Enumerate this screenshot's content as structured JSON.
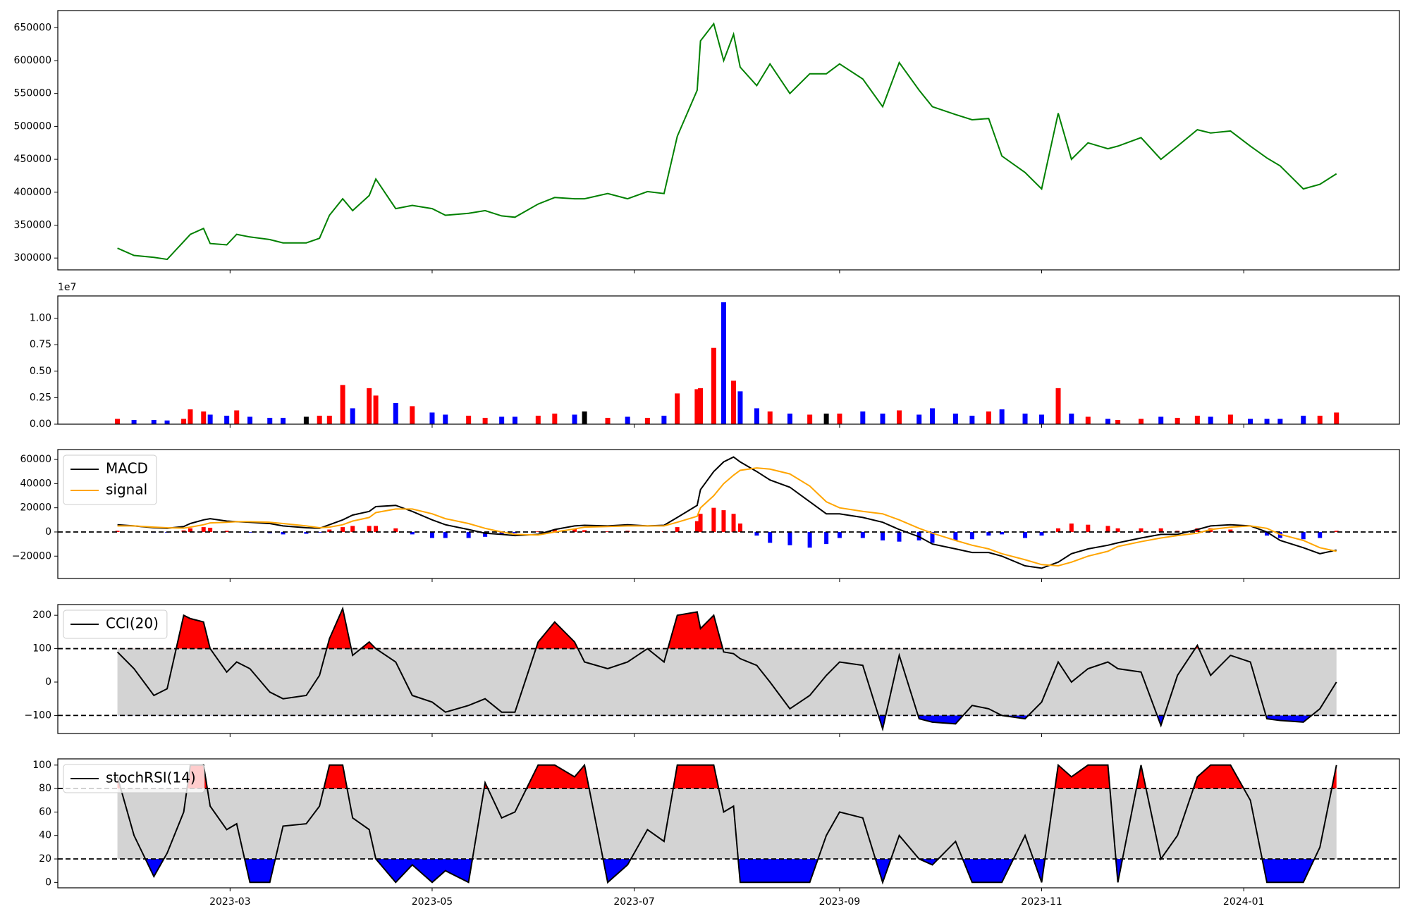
{
  "chart_data": [
    {
      "type": "line",
      "x": [
        "2023-01-26",
        "2023-01-31",
        "2023-02-06",
        "2023-02-10",
        "2023-02-15",
        "2023-02-17",
        "2023-02-21",
        "2023-02-23",
        "2023-02-28",
        "2023-03-03",
        "2023-03-07",
        "2023-03-13",
        "2023-03-17",
        "2023-03-24",
        "2023-03-28",
        "2023-03-31",
        "2023-04-04",
        "2023-04-07",
        "2023-04-12",
        "2023-04-14",
        "2023-04-20",
        "2023-04-25",
        "2023-05-01",
        "2023-05-05",
        "2023-05-12",
        "2023-05-17",
        "2023-05-22",
        "2023-05-26",
        "2023-06-02",
        "2023-06-07",
        "2023-06-13",
        "2023-06-16",
        "2023-06-23",
        "2023-06-29",
        "2023-07-05",
        "2023-07-10",
        "2023-07-14",
        "2023-07-20",
        "2023-07-21",
        "2023-07-25",
        "2023-07-28",
        "2023-07-31",
        "2023-08-02",
        "2023-08-07",
        "2023-08-11",
        "2023-08-17",
        "2023-08-23",
        "2023-08-28",
        "2023-09-01",
        "2023-09-08",
        "2023-09-14",
        "2023-09-19",
        "2023-09-25",
        "2023-09-29",
        "2023-10-06",
        "2023-10-11",
        "2023-10-16",
        "2023-10-20",
        "2023-10-27",
        "2023-11-01",
        "2023-11-06",
        "2023-11-10",
        "2023-11-15",
        "2023-11-21",
        "2023-11-24",
        "2023-12-01",
        "2023-12-07",
        "2023-12-12",
        "2023-12-18",
        "2023-12-22",
        "2023-12-28",
        "2024-01-03",
        "2024-01-08",
        "2024-01-12",
        "2024-01-19",
        "2024-01-24",
        "2024-01-29"
      ],
      "values": [
        315000,
        304000,
        301000,
        298000,
        325000,
        336000,
        345000,
        322000,
        320000,
        336000,
        332000,
        328000,
        323000,
        323000,
        330000,
        365000,
        390000,
        372000,
        395000,
        420000,
        375000,
        380000,
        375000,
        365000,
        368000,
        372000,
        364000,
        362000,
        382000,
        392000,
        390000,
        390000,
        398000,
        390000,
        401000,
        398000,
        485000,
        555000,
        630000,
        656000,
        600000,
        640000,
        590000,
        562000,
        595000,
        550000,
        580000,
        580000,
        595000,
        572000,
        530000,
        597000,
        555000,
        530000,
        518000,
        510000,
        512000,
        455000,
        430000,
        405000,
        520000,
        450000,
        475000,
        466000,
        470000,
        483000,
        450000,
        470000,
        495000,
        490000,
        493000,
        470000,
        452000,
        440000,
        405000,
        412000,
        428000
      ],
      "color": "green",
      "ylim": [
        282000,
        676000
      ],
      "yticks": [
        300000,
        350000,
        400000,
        450000,
        500000,
        550000,
        600000,
        650000
      ]
    },
    {
      "type": "bar",
      "values": [
        500000,
        400000,
        400000,
        350000,
        500000,
        1400000,
        1200000,
        900000,
        800000,
        1300000,
        700000,
        600000,
        600000,
        700000,
        800000,
        800000,
        3700000,
        1500000,
        3400000,
        2700000,
        2000000,
        1700000,
        1100000,
        900000,
        800000,
        600000,
        700000,
        700000,
        800000,
        1000000,
        900000,
        1200000,
        600000,
        700000,
        600000,
        800000,
        2900000,
        3300000,
        3400000,
        7200000,
        11500000,
        4100000,
        3100000,
        1500000,
        1200000,
        1000000,
        900000,
        1000000,
        1000000,
        1200000,
        1000000,
        1300000,
        900000,
        1500000,
        1000000,
        800000,
        1200000,
        1400000,
        1000000,
        900000,
        3400000,
        1000000,
        700000,
        500000,
        400000,
        500000,
        700000,
        600000,
        800000,
        700000,
        900000,
        500000,
        500000,
        500000,
        800000,
        800000,
        1100000
      ],
      "up_color": "red",
      "down_color": "blue",
      "flat_color": "black",
      "offset_label": "1e7",
      "ylim": [
        0,
        12100000
      ],
      "yticks": [
        {
          "value": 0,
          "label": "0.00"
        },
        {
          "value": 2500000,
          "label": "0.25"
        },
        {
          "value": 5000000,
          "label": "0.50"
        },
        {
          "value": 7500000,
          "label": "0.75"
        },
        {
          "value": 10000000,
          "label": "1.00"
        }
      ]
    },
    {
      "type": "macd",
      "series": [
        {
          "name": "MACD",
          "color": "black",
          "values": [
            6000,
            5000,
            3500,
            3000,
            4500,
            7000,
            10000,
            11000,
            9000,
            8500,
            8000,
            7000,
            5000,
            3500,
            3000,
            6000,
            10000,
            14000,
            17000,
            21000,
            22000,
            17000,
            10000,
            6000,
            2000,
            -1000,
            -2000,
            -3000,
            -2000,
            2000,
            5000,
            5500,
            5000,
            6000,
            5000,
            5500,
            12000,
            22000,
            35000,
            50000,
            58000,
            62000,
            58000,
            50000,
            43000,
            37000,
            25000,
            15000,
            15000,
            12000,
            8000,
            2000,
            -4000,
            -10000,
            -14000,
            -17000,
            -17000,
            -20000,
            -28000,
            -30000,
            -25000,
            -18000,
            -14000,
            -11000,
            -9000,
            -5000,
            -2000,
            -2000,
            2000,
            5000,
            6000,
            5000,
            0,
            -7000,
            -13000,
            -18000,
            -15000
          ]
        },
        {
          "name": "signal",
          "color": "orange",
          "values": [
            5000,
            5000,
            4000,
            3500,
            3200,
            4000,
            6000,
            7500,
            8000,
            8500,
            8500,
            8000,
            7000,
            5000,
            3500,
            4000,
            6000,
            9000,
            12000,
            16000,
            19000,
            19000,
            15000,
            11000,
            7000,
            3000,
            0,
            -2000,
            -2500,
            0,
            2500,
            4000,
            4500,
            5000,
            5000,
            5000,
            8000,
            13000,
            20000,
            30000,
            40000,
            47000,
            51000,
            53000,
            52000,
            48000,
            38000,
            25000,
            20000,
            17000,
            15000,
            10000,
            3000,
            -1000,
            -7000,
            -11000,
            -14000,
            -18000,
            -23000,
            -27000,
            -28000,
            -25000,
            -20000,
            -16000,
            -12000,
            -8000,
            -5000,
            -3000,
            -1000,
            2000,
            4000,
            5000,
            3000,
            -2000,
            -7000,
            -13000,
            -16000
          ]
        }
      ],
      "histogram": {
        "up_color": "red",
        "down_color": "blue",
        "values": [
          1000,
          0,
          -500,
          -500,
          1300,
          3000,
          4000,
          3500,
          1000,
          0,
          -500,
          -1000,
          -2000,
          -1500,
          -500,
          2000,
          4000,
          5000,
          5000,
          5000,
          3000,
          -2000,
          -5000,
          -5000,
          -5000,
          -4000,
          -2000,
          -1000,
          500,
          2000,
          2500,
          1500,
          500,
          1000,
          0,
          500,
          4000,
          9000,
          15000,
          20000,
          18000,
          15000,
          7000,
          -3000,
          -9000,
          -11000,
          -13000,
          -10000,
          -5000,
          -5000,
          -7000,
          -8000,
          -7000,
          -9000,
          -7000,
          -6000,
          -3000,
          -2000,
          -5000,
          -3000,
          3000,
          7000,
          6000,
          5000,
          3000,
          3000,
          3000,
          1000,
          3000,
          3000,
          2000,
          0,
          -3000,
          -5000,
          -6000,
          -5000,
          1000
        ]
      },
      "hlines": [
        0
      ],
      "legend": "upper left",
      "ylim": [
        -38500,
        68200
      ],
      "yticks": [
        {
          "value": -20000,
          "label": "−20000"
        },
        0,
        20000,
        40000,
        60000
      ]
    },
    {
      "type": "band",
      "series": [
        {
          "name": "CCI(20)",
          "color": "black",
          "values": [
            90,
            40,
            -40,
            -20,
            200,
            190,
            180,
            100,
            30,
            60,
            40,
            -30,
            -50,
            -40,
            20,
            130,
            220,
            80,
            120,
            100,
            60,
            -40,
            -60,
            -90,
            -70,
            -50,
            -90,
            -90,
            120,
            180,
            120,
            60,
            40,
            60,
            100,
            60,
            200,
            210,
            160,
            200,
            90,
            85,
            70,
            50,
            0,
            -80,
            -40,
            20,
            60,
            50,
            -140,
            80,
            -110,
            -120,
            -125,
            -70,
            -80,
            -100,
            -110,
            -60,
            60,
            0,
            40,
            60,
            40,
            30,
            -130,
            20,
            110,
            20,
            80,
            60,
            -110,
            -115,
            -120,
            -80,
            0
          ]
        }
      ],
      "hlines": [
        100,
        -100
      ],
      "band_color": "lightgray",
      "above_color": "red",
      "below_color": "blue",
      "legend": "upper left",
      "ylim": [
        -154,
        232
      ],
      "yticks": [
        {
          "value": -100,
          "label": "−100"
        },
        0,
        100,
        200
      ]
    },
    {
      "type": "band",
      "series": [
        {
          "name": "stochRSI(14)",
          "color": "black",
          "values": [
            90,
            40,
            5,
            25,
            60,
            100,
            100,
            65,
            45,
            50,
            0,
            0,
            48,
            50,
            65,
            100,
            100,
            55,
            45,
            20,
            0,
            15,
            0,
            10,
            0,
            85,
            55,
            60,
            100,
            100,
            90,
            100,
            0,
            15,
            45,
            35,
            100,
            100,
            100,
            100,
            60,
            65,
            0,
            0,
            0,
            0,
            0,
            40,
            60,
            55,
            0,
            40,
            20,
            15,
            35,
            0,
            0,
            0,
            40,
            0,
            100,
            90,
            100,
            100,
            0,
            100,
            20,
            40,
            90,
            100,
            100,
            70,
            0,
            0,
            0,
            30,
            100
          ]
        }
      ],
      "hlines": [
        80,
        20
      ],
      "band_color": "lightgray",
      "above_color": "red",
      "below_color": "blue",
      "legend": "upper left",
      "ylim": [
        -4.6,
        105.3
      ],
      "yticks": [
        0,
        20,
        40,
        60,
        80,
        100
      ],
      "xlim": [
        "2023-01-08",
        "2024-02-17"
      ],
      "xticks": [
        "2023-03",
        "2023-05",
        "2023-07",
        "2023-09",
        "2023-11",
        "2024-01"
      ]
    }
  ]
}
